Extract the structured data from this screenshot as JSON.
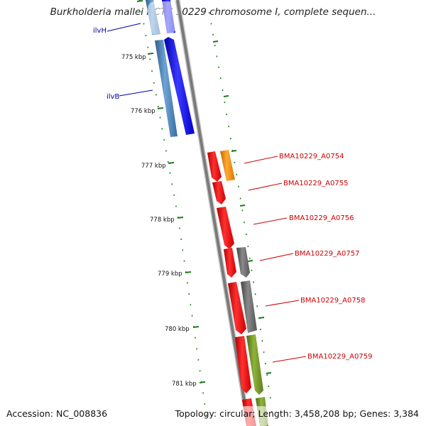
{
  "title": "Burkholderia mallei NCTC 10229 chromosome I, complete sequen...",
  "accession": "Accession: NC_008836",
  "topology": "Topology: circular; Length: 3,458,208 bp; Genes: 3,384",
  "ticks": [
    "775 kbp",
    "776 kbp",
    "777 kbp",
    "778 kbp",
    "779 kbp",
    "780 kbp",
    "781 kbp"
  ],
  "genes": [
    {
      "label": "ilvH",
      "color": "#0000aa"
    },
    {
      "label": "ilvB",
      "color": "#0000aa"
    },
    {
      "label": "BMA10229_A0754",
      "color": "#cc0000"
    },
    {
      "label": "BMA10229_A0755",
      "color": "#cc0000"
    },
    {
      "label": "BMA10229_A0756",
      "color": "#cc0000"
    },
    {
      "label": "BMA10229_A0757",
      "color": "#cc0000"
    },
    {
      "label": "BMA10229_A0758",
      "color": "#cc0000"
    },
    {
      "label": "BMA10229_A0759",
      "color": "#cc0000"
    }
  ],
  "colors": {
    "backbone": "#808080",
    "tick": "#1a7a1a",
    "cds_blue": "#0000ee",
    "cds_steel": "#4682b4",
    "cds_red": "#ee0000",
    "cds_orange": "#ff8c00",
    "cds_gray": "#666666",
    "cds_olive": "#6b8e23"
  }
}
